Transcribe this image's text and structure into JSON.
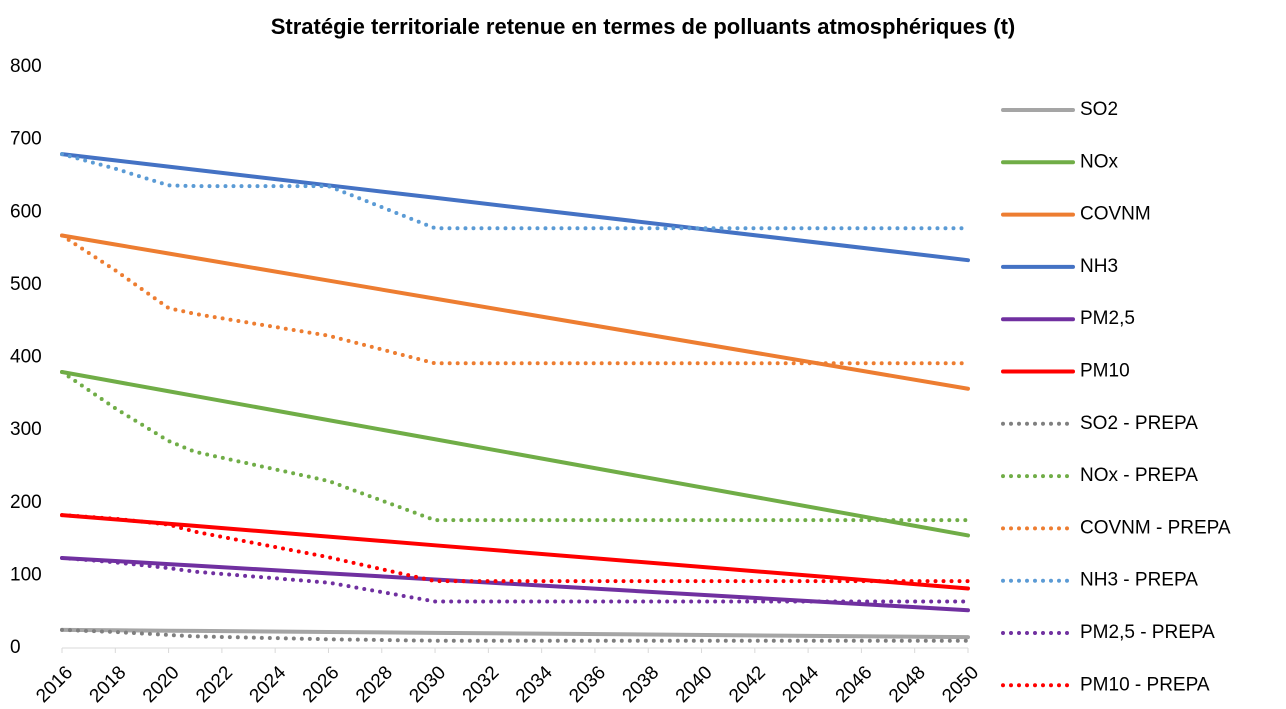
{
  "chart_data": {
    "type": "line",
    "title": "Stratégie territoriale retenue en termes de polluants atmosphériques (t)",
    "x": [
      2016,
      2018,
      2020,
      2021,
      2026,
      2030,
      2050
    ],
    "xlim": [
      2016,
      2050
    ],
    "xticks": [
      2016,
      2018,
      2020,
      2022,
      2024,
      2026,
      2028,
      2030,
      2032,
      2034,
      2036,
      2038,
      2040,
      2042,
      2044,
      2046,
      2048,
      2050
    ],
    "ylim": [
      0,
      800
    ],
    "yticks": [
      0,
      100,
      200,
      300,
      400,
      500,
      600,
      700,
      800
    ],
    "grid": false,
    "legend": "right",
    "series": [
      {
        "name": "SO2",
        "color": "#a5a5a5",
        "style": "solid",
        "values": [
          25,
          24.4,
          23.8,
          23.5,
          22.1,
          20.9,
          15
        ]
      },
      {
        "name": "NOx",
        "color": "#70ad47",
        "style": "solid",
        "values": [
          380,
          366.8,
          353.5,
          346.9,
          313.8,
          287.4,
          155
        ]
      },
      {
        "name": "COVNM",
        "color": "#ed7d31",
        "style": "solid",
        "values": [
          568,
          555.6,
          543.2,
          537.0,
          505.9,
          481.1,
          357
        ]
      },
      {
        "name": "NH3",
        "color": "#4472c4",
        "style": "solid",
        "values": [
          680,
          671.4,
          662.8,
          658.5,
          637.1,
          619.9,
          534
        ]
      },
      {
        "name": "PM2,5",
        "color": "#7030a0",
        "style": "solid",
        "values": [
          124,
          119.8,
          115.5,
          113.4,
          102.8,
          94.4,
          52
        ]
      },
      {
        "name": "PM10",
        "color": "#ff0000",
        "style": "solid",
        "values": [
          183,
          177.1,
          171.1,
          168.1,
          153.3,
          141.4,
          82
        ]
      },
      {
        "name": "SO2 - PREPA",
        "color": "#7f7f7f",
        "style": "dotted",
        "values": [
          25,
          22,
          18,
          16,
          12,
          10,
          10
        ]
      },
      {
        "name": "NOx - PREPA",
        "color": "#70ad47",
        "style": "dotted",
        "values": [
          380,
          330,
          285,
          270,
          230,
          176,
          176
        ]
      },
      {
        "name": "COVNM - PREPA",
        "color": "#ed7d31",
        "style": "dotted",
        "values": [
          568,
          520,
          468,
          460,
          430,
          392,
          392
        ]
      },
      {
        "name": "NH3 - PREPA",
        "color": "#5b9bd5",
        "style": "dotted",
        "values": [
          680,
          660,
          637,
          636,
          636,
          578,
          578
        ]
      },
      {
        "name": "PM2,5 - PREPA",
        "color": "#7030a0",
        "style": "dotted",
        "values": [
          124,
          118,
          110,
          105,
          90,
          64,
          64
        ]
      },
      {
        "name": "PM10 - PREPA",
        "color": "#ff0000",
        "style": "dotted",
        "values": [
          183,
          178,
          170,
          160,
          125,
          92,
          92
        ]
      }
    ]
  }
}
